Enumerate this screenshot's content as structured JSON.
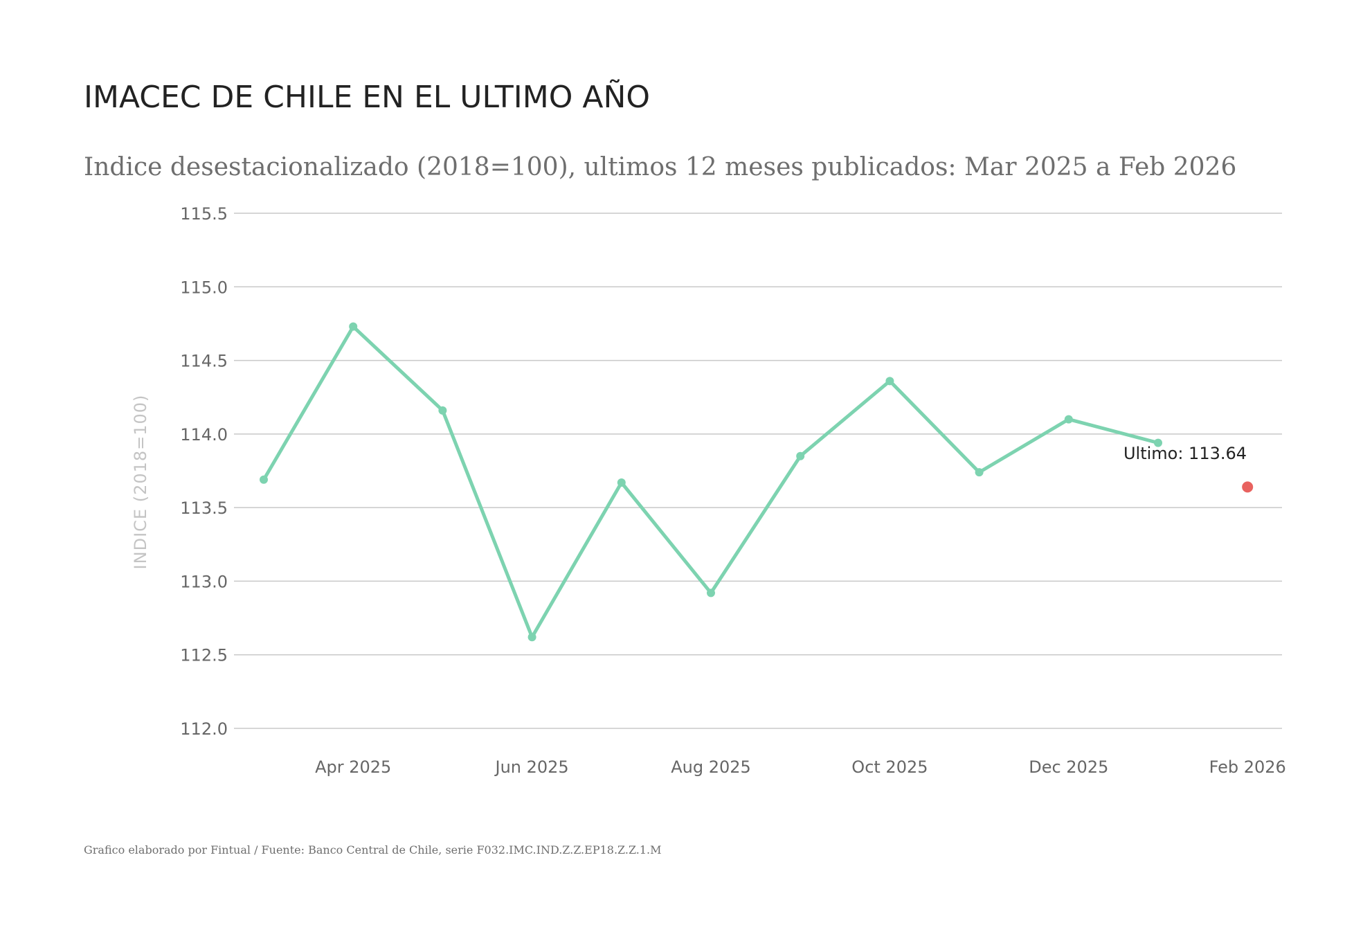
{
  "chart_data": {
    "type": "line",
    "title": "IMACEC DE CHILE EN EL ULTIMO AÑO",
    "subtitle": "Indice desestacionalizado (2018=100), ultimos 12 meses publicados: Mar 2025 a Feb 2026",
    "xlabel": "",
    "ylabel": "INDICE (2018=100)",
    "x": [
      "2025-03",
      "2025-04",
      "2025-05",
      "2025-06",
      "2025-07",
      "2025-08",
      "2025-09",
      "2025-10",
      "2025-11",
      "2025-12",
      "2026-01",
      "2026-02"
    ],
    "x_tick_labels": [
      {
        "x": "2025-04",
        "label": "Apr 2025"
      },
      {
        "x": "2025-06",
        "label": "Jun 2025"
      },
      {
        "x": "2025-08",
        "label": "Aug 2025"
      },
      {
        "x": "2025-10",
        "label": "Oct 2025"
      },
      {
        "x": "2025-12",
        "label": "Dec 2025"
      },
      {
        "x": "2026-02",
        "label": "Feb 2026"
      }
    ],
    "y_ticks": [
      "112.0",
      "112.5",
      "113.0",
      "113.5",
      "114.0",
      "114.5",
      "115.0",
      "115.5"
    ],
    "ylim": [
      112.0,
      115.5
    ],
    "series": [
      {
        "values": [
          113.69,
          114.73,
          114.16,
          112.62,
          113.67,
          112.92,
          113.85,
          114.36,
          113.74,
          114.1,
          113.94,
          113.64
        ],
        "color": "#7dd3b0"
      }
    ],
    "last_point_color": "#e8625f",
    "annotation": {
      "x": "2026-02",
      "label": "Ultimo: 113.64"
    },
    "grid": true,
    "legend": "none",
    "source": "Grafico elaborado por Fintual / Fuente: Banco Central de Chile, serie F032.IMC.IND.Z.Z.EP18.Z.Z.1.M"
  }
}
